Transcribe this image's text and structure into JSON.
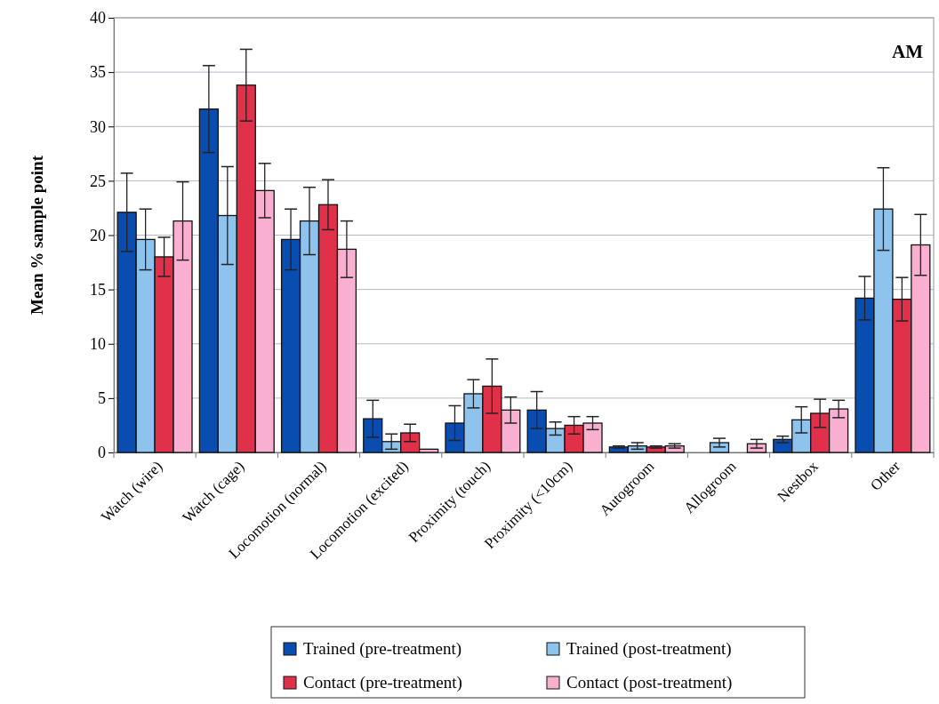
{
  "chart_data": {
    "type": "bar",
    "ylabel": "Mean % sample point",
    "annotations": [
      "AM"
    ],
    "categories": [
      "Watch (wire)",
      "Watch (cage)",
      "Locomotion (normal)",
      "Locomotion (excited)",
      "Proximity (touch)",
      "Proximity (<10cm)",
      "Autogroom",
      "Allogroom",
      "Nestbox",
      "Other"
    ],
    "series": [
      {
        "name": "Trained (pre-treatment)",
        "color": "#0a4db0",
        "values": [
          22.1,
          31.6,
          19.6,
          3.1,
          2.7,
          3.9,
          0.5,
          0,
          1.2,
          14.2
        ],
        "errors": [
          3.6,
          4.0,
          2.8,
          1.7,
          1.6,
          1.7,
          0.1,
          null,
          0.3,
          2.0
        ]
      },
      {
        "name": "Trained (post-treatment)",
        "color": "#8ec3ee",
        "values": [
          19.6,
          21.8,
          21.3,
          1.0,
          5.4,
          2.2,
          0.6,
          0.9,
          3.0,
          22.4
        ],
        "errors": [
          2.8,
          4.5,
          3.1,
          0.7,
          1.3,
          0.6,
          0.3,
          0.4,
          1.2,
          3.8
        ]
      },
      {
        "name": "Contact (pre-treatment)",
        "color": "#e0304a",
        "values": [
          18.0,
          33.8,
          22.8,
          1.8,
          6.1,
          2.5,
          0.5,
          0,
          3.6,
          14.1
        ],
        "errors": [
          1.8,
          3.3,
          2.3,
          0.8,
          2.5,
          0.8,
          0.1,
          null,
          1.3,
          2.0
        ]
      },
      {
        "name": "Contact (post-treatment)",
        "color": "#f9b0d0",
        "values": [
          21.3,
          24.1,
          18.7,
          0.3,
          3.9,
          2.7,
          0.6,
          0.8,
          4.0,
          19.1
        ],
        "errors": [
          3.6,
          2.5,
          2.6,
          null,
          1.2,
          0.6,
          0.2,
          0.4,
          0.8,
          2.8
        ]
      }
    ],
    "ylim": [
      0,
      40
    ],
    "yticks": [
      0,
      5,
      10,
      15,
      20,
      25,
      30,
      35,
      40
    ],
    "grid": "y",
    "legend": "bottom"
  }
}
